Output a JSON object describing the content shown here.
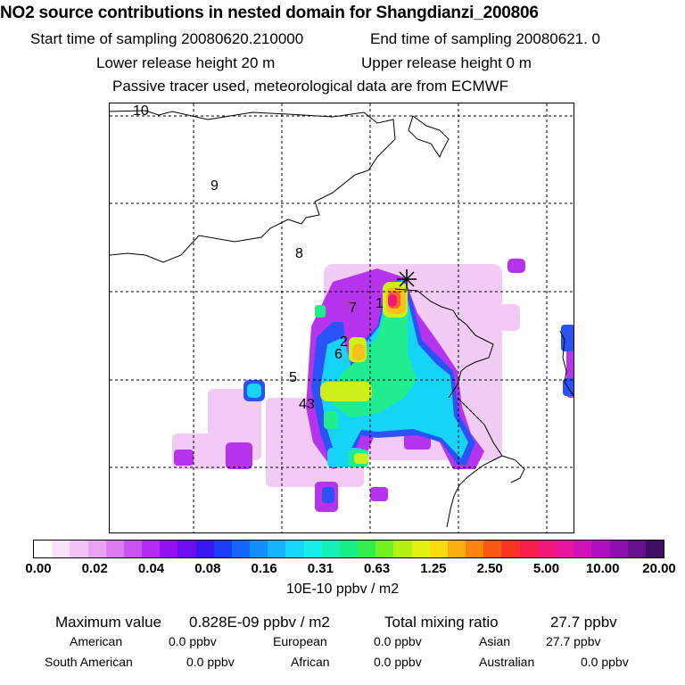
{
  "header": {
    "title": "NO2 source contributions in nested domain for Shangdianzi_200806",
    "start_time": "Start time of sampling 20080620.210000",
    "end_time": "End time of sampling 20080621.     0",
    "lower_height": "Lower release height   20 m",
    "upper_height": "Upper release height    0 m",
    "tracer_note": "Passive tracer used, meteorological data are from ECMWF"
  },
  "map": {
    "labels": [
      "10",
      "9",
      "8",
      "7",
      "1",
      "2",
      "6",
      "5",
      "43"
    ],
    "station_marker": "asterisk-icon"
  },
  "colorbar": {
    "ticks": [
      "0.00",
      "0.02",
      "0.04",
      "0.08",
      "0.16",
      "0.31",
      "0.63",
      "1.25",
      "2.50",
      "5.00",
      "10.00",
      "20.00"
    ],
    "units": "10E-10 ppbv / m2",
    "colors": [
      "#ffffff",
      "#fbe4fb",
      "#f3c3f6",
      "#eaa2f2",
      "#dc7cf1",
      "#c853ef",
      "#b32af0",
      "#9410ee",
      "#6a0ef0",
      "#3c14f0",
      "#1a3ef5",
      "#1266f8",
      "#138ffb",
      "#14b4fd",
      "#16d7fa",
      "#17f0e6",
      "#15f0b8",
      "#15ef88",
      "#34ef4a",
      "#74f020",
      "#b2f112",
      "#e3f10e",
      "#f8da0e",
      "#faae10",
      "#fa8412",
      "#fa5a15",
      "#f93424",
      "#f71e4e",
      "#f3187c",
      "#e715a2",
      "#d012b8",
      "#b011c0",
      "#8a0fae",
      "#66108c",
      "#420d63"
    ]
  },
  "stats": {
    "max_label": "Maximum value",
    "max_value": "0.828E-09 ppbv / m2",
    "total_label": "Total mixing ratio",
    "total_value": "27.7 ppbv",
    "regions": [
      {
        "name": "American",
        "value": "0.0 ppbv"
      },
      {
        "name": "European",
        "value": "0.0 ppbv"
      },
      {
        "name": "Asian",
        "value": "27.7 ppbv"
      },
      {
        "name": "South American",
        "value": "0.0 ppbv"
      },
      {
        "name": "African",
        "value": "0.0 ppbv"
      },
      {
        "name": "Australian",
        "value": "0.0 ppbv"
      }
    ]
  }
}
